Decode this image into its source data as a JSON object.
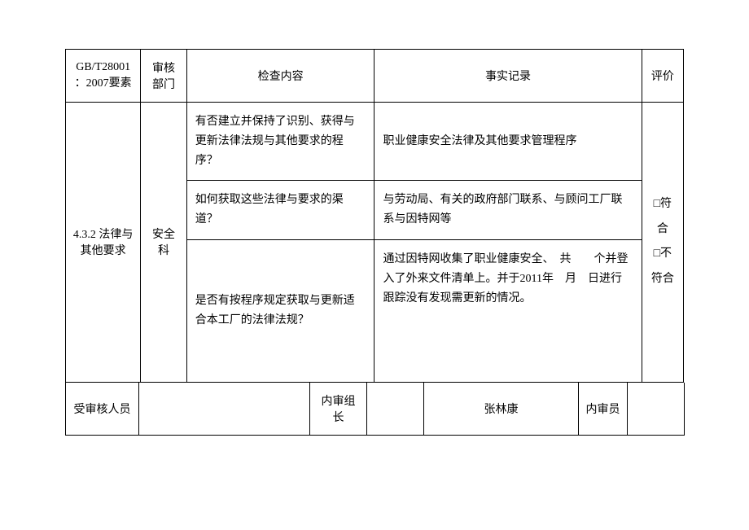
{
  "header": {
    "col1": "GB/T28001：2007要素",
    "col2": "审核部门",
    "col3": "检查内容",
    "col4": "事实记录",
    "col5": "评价"
  },
  "body": {
    "element": "4.3.2 法律与其他要求",
    "dept": "安全科",
    "rows": [
      {
        "check": "有否建立并保持了识别、获得与更新法律法规与其他要求的程序？",
        "record": "职业健康安全法律及其他要求管理程序"
      },
      {
        "check": "如何获取这些法律与要求的渠道？",
        "record": "与劳动局、有关的政府部门联系、与顾问工厂联系与因特网等"
      },
      {
        "check": "是否有按程序规定获取与更新适合本工厂的法律法规？",
        "record": "通过因特网收集了职业健康安全、　共　　个并登入了外来文件清单上。并于2011年　月　日进行跟踪没有发现需更新的情况。"
      }
    ],
    "eval_conform": "□符合",
    "eval_nonconform": "□不符合"
  },
  "footer": {
    "label1": "受审核人员",
    "val1": "",
    "label2": "内审组长",
    "val2": "",
    "label3": "张林康",
    "label4": "内审员",
    "val4": ""
  }
}
